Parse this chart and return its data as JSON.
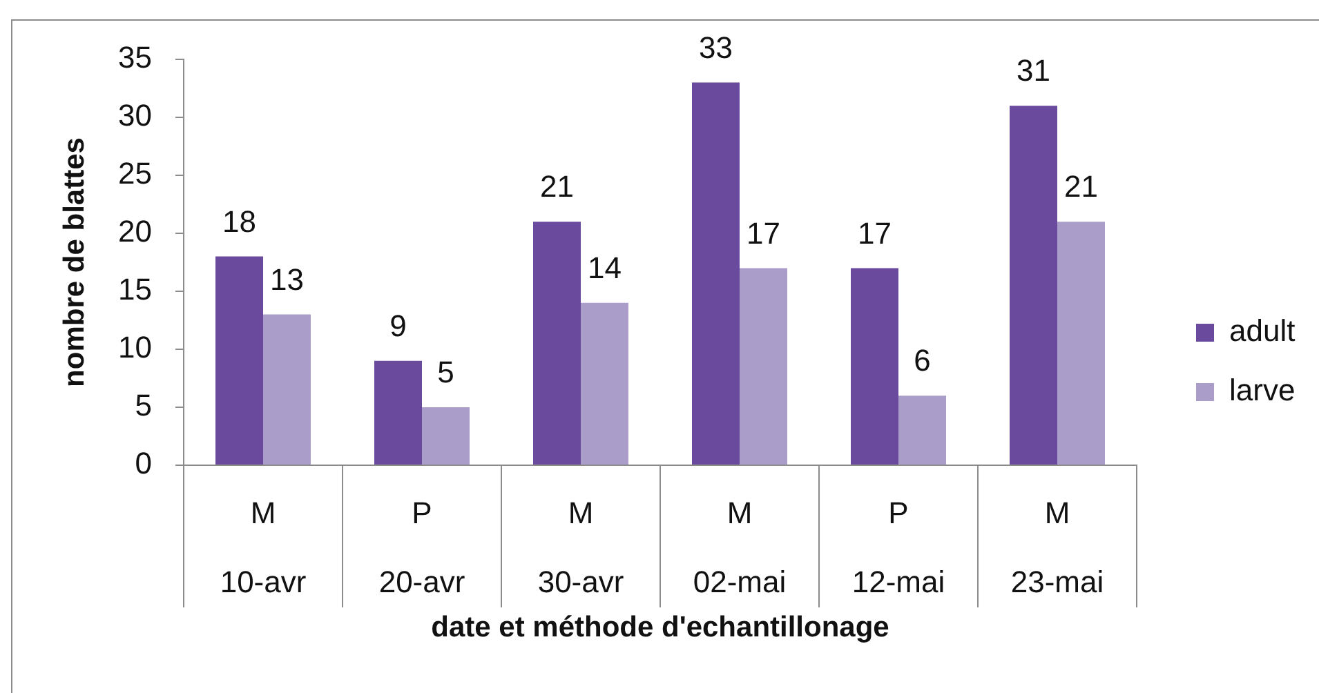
{
  "chart_data": {
    "type": "bar",
    "xlabel": "date et méthode d'echantillonage",
    "ylabel": "nombre de blattes",
    "categories": [
      "M\n10-avr",
      "P\n20-avr",
      "M\n30-avr",
      "M\n02-mai",
      "P\n12-mai",
      "M\n23-mai"
    ],
    "series": [
      {
        "name": "adult",
        "color": "#6a4a9c",
        "values": [
          18,
          9,
          21,
          33,
          17,
          31
        ]
      },
      {
        "name": "larve",
        "color": "#ab9dca",
        "values": [
          13,
          5,
          14,
          17,
          6,
          21
        ]
      }
    ],
    "ylim": [
      0,
      35
    ],
    "yticks": [
      0,
      5,
      10,
      15,
      20,
      25,
      30,
      35
    ],
    "data_labels": true,
    "legend": "right"
  }
}
